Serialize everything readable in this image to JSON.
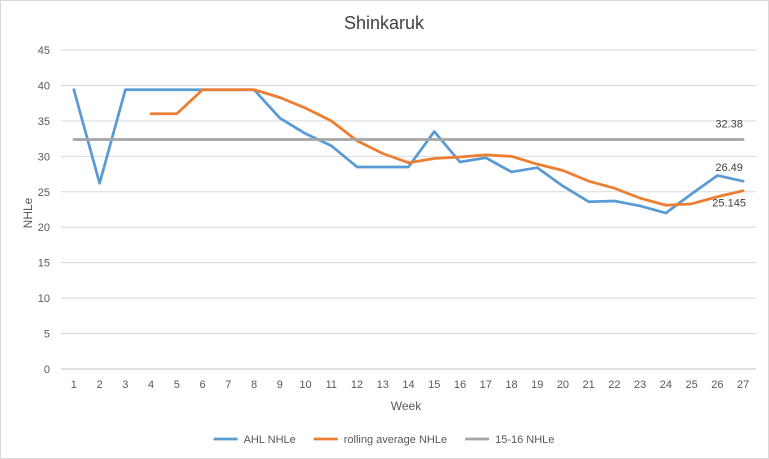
{
  "chart_data": {
    "type": "line",
    "title": "Shinkaruk",
    "xlabel": "Week",
    "ylabel": "NHLe",
    "ylim": [
      0,
      45
    ],
    "yticks": [
      0,
      5,
      10,
      15,
      20,
      25,
      30,
      35,
      40,
      45
    ],
    "x": [
      1,
      2,
      3,
      4,
      5,
      6,
      7,
      8,
      9,
      10,
      11,
      12,
      13,
      14,
      15,
      16,
      17,
      18,
      19,
      20,
      21,
      22,
      23,
      24,
      25,
      26,
      27
    ],
    "grid": true,
    "legend_position": "bottom",
    "series": [
      {
        "name": "AHL NHLe",
        "color": "#5b9bd5",
        "values": [
          39.4,
          26.2,
          39.4,
          39.4,
          39.4,
          39.4,
          39.4,
          39.4,
          35.4,
          33.2,
          31.5,
          28.5,
          28.5,
          28.5,
          33.5,
          29.2,
          29.8,
          27.8,
          28.4,
          25.8,
          23.6,
          23.7,
          23.0,
          22.0,
          24.7,
          27.3,
          26.49
        ]
      },
      {
        "name": "rolling average NHLe",
        "color": "#ed7d31",
        "values": [
          null,
          null,
          null,
          36.0,
          36.0,
          39.4,
          39.4,
          39.4,
          38.3,
          36.8,
          35.0,
          32.2,
          30.4,
          29.1,
          29.7,
          29.9,
          30.2,
          30.0,
          28.9,
          28.0,
          26.5,
          25.5,
          24.1,
          23.1,
          23.3,
          24.3,
          25.145
        ]
      },
      {
        "name": "15-16 NHLe",
        "color": "#a5a5a5",
        "values": [
          32.38,
          32.38,
          32.38,
          32.38,
          32.38,
          32.38,
          32.38,
          32.38,
          32.38,
          32.38,
          32.38,
          32.38,
          32.38,
          32.38,
          32.38,
          32.38,
          32.38,
          32.38,
          32.38,
          32.38,
          32.38,
          32.38,
          32.38,
          32.38,
          32.38,
          32.38,
          32.38
        ]
      }
    ],
    "data_labels": [
      {
        "series": 2,
        "index": 26,
        "text": "32.38"
      },
      {
        "series": 0,
        "index": 26,
        "text": "26.49"
      },
      {
        "series": 1,
        "index": 26,
        "text": "25.145"
      }
    ]
  }
}
